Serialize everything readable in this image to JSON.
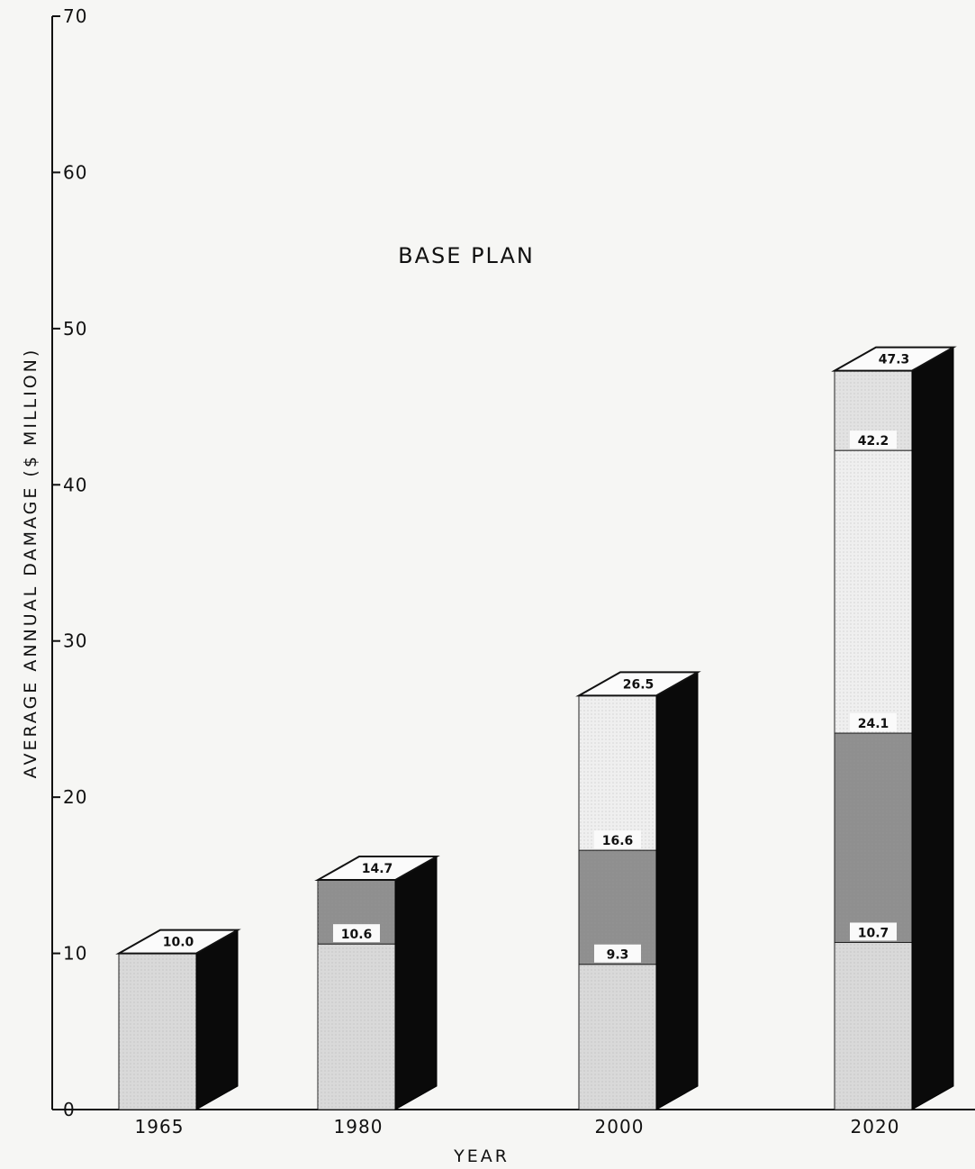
{
  "chart_data": {
    "type": "bar",
    "stacked": true,
    "title": "BASE PLAN",
    "xlabel": "YEAR",
    "ylabel": "AVERAGE ANNUAL DAMAGE ($ MILLION)",
    "ylim": [
      0,
      70
    ],
    "yticks": [
      0,
      10,
      20,
      30,
      40,
      50,
      60,
      70
    ],
    "categories": [
      "1965",
      "1980",
      "2000",
      "2020"
    ],
    "segment_tops": [
      [
        "10.0"
      ],
      [
        "10.6",
        "14.7"
      ],
      [
        "9.3",
        "16.6",
        "26.5"
      ],
      [
        "10.7",
        "24.1",
        "42.2",
        "47.3"
      ]
    ],
    "series": [
      {
        "values": [
          10.0,
          10.6,
          9.3,
          10.7
        ]
      },
      {
        "values": [
          0,
          4.1,
          7.3,
          13.4
        ]
      },
      {
        "values": [
          0,
          0,
          9.9,
          18.1
        ]
      },
      {
        "values": [
          0,
          0,
          0,
          5.1
        ]
      }
    ],
    "segment_colors": [
      "#d9d9d9",
      "#8f8f8f",
      "#efefef",
      "#e2e2e2"
    ],
    "grid": false,
    "legend": "none"
  }
}
